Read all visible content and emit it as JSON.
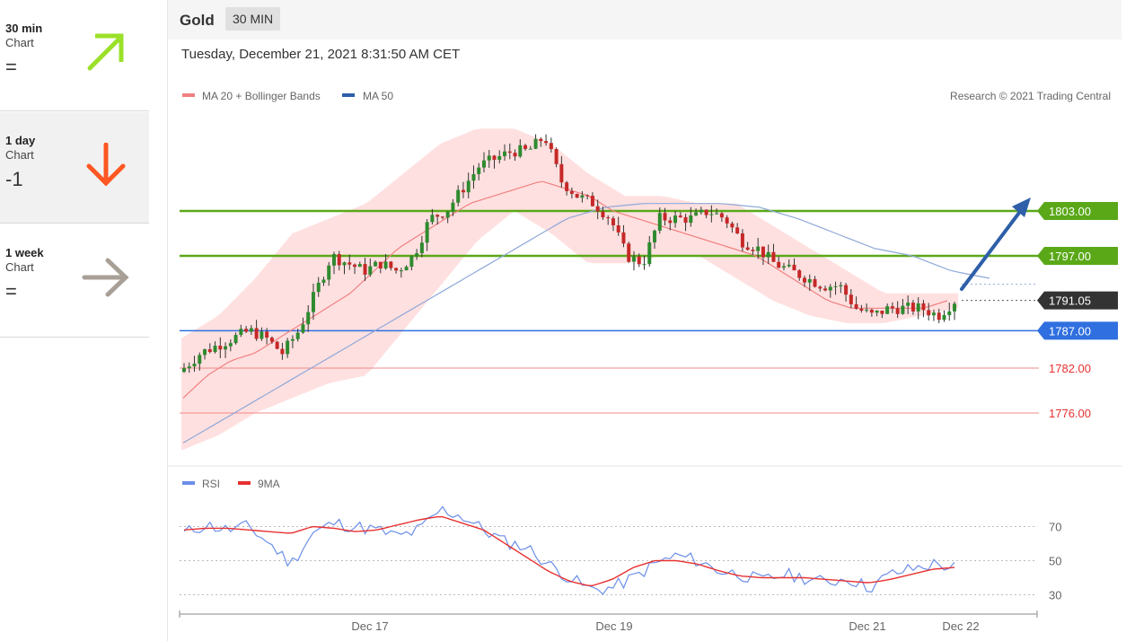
{
  "sidebar": {
    "items": [
      {
        "period": "30 min",
        "sub": "Chart",
        "value": "=",
        "arrow": "up-right-arrow-icon",
        "color": "#9be02a"
      },
      {
        "period": "1 day",
        "sub": "Chart",
        "value": "-1",
        "arrow": "down-arrow-icon",
        "color": "#ff5722"
      },
      {
        "period": "1 week",
        "sub": "Chart",
        "value": "=",
        "arrow": "right-arrow-icon",
        "color": "#a89f97"
      }
    ]
  },
  "header": {
    "instrument": "Gold",
    "timeframe": "30 MIN"
  },
  "datetime": "Tuesday, December 21, 2021 8:31:50 AM CET",
  "copyright": "Research © 2021 Trading Central",
  "legend": {
    "ma20": "MA 20 + Bollinger Bands",
    "ma50": "MA 50",
    "rsi": "RSI",
    "ma9": "9MA"
  },
  "colors": {
    "bollinger": "#ffd6d6",
    "ma20": "#f08080",
    "ma50": "#8fa8d8",
    "green_level": "#5aa818",
    "blue_level": "#2f6fe0",
    "red_level": "#f08888",
    "up_candle": "#2e8b2e",
    "down_candle": "#c62828",
    "rsi": "#6b8ee8",
    "rsi_ma": "#e83030"
  },
  "chart_data": [
    {
      "type": "candlestick",
      "title": "Gold",
      "timeframe": "30 MIN",
      "ylim": [
        1770,
        1818
      ],
      "x_ticks": [
        "Dec 17",
        "Dec 19",
        "Dec 21",
        "Dec 22"
      ],
      "current_price": "1791.05",
      "levels": [
        {
          "value": 1803,
          "label": "1803.00",
          "kind": "resistance"
        },
        {
          "value": 1797,
          "label": "1797.00",
          "kind": "resistance"
        },
        {
          "value": 1787,
          "label": "1787.00",
          "kind": "pivot"
        },
        {
          "value": 1782,
          "label": "1782.00",
          "kind": "support"
        },
        {
          "value": 1776,
          "label": "1776.00",
          "kind": "support"
        }
      ],
      "series_anchors": {
        "close": [
          1782,
          1784,
          1785,
          1786,
          1787,
          1786,
          1784,
          1787,
          1792,
          1797,
          1796,
          1795,
          1796,
          1795,
          1797,
          1802,
          1803,
          1806,
          1809,
          1810,
          1811,
          1811,
          1813,
          1807,
          1805,
          1804,
          1802,
          1797,
          1796,
          1802,
          1802,
          1802,
          1803,
          1802,
          1799,
          1798,
          1796,
          1795,
          1794,
          1793,
          1793,
          1790,
          1789,
          1790,
          1790,
          1790,
          1789,
          1791
        ],
        "ma20": [
          1778,
          1781,
          1783,
          1784,
          1786,
          1788,
          1790,
          1792,
          1795,
          1798,
          1800,
          1802,
          1804,
          1805,
          1806,
          1807,
          1806,
          1805,
          1803,
          1802,
          1801,
          1800,
          1799,
          1798,
          1797,
          1795,
          1793,
          1791,
          1790,
          1790,
          1790,
          1790,
          1791
        ],
        "ma50": [
          1772,
          1775,
          1778,
          1781,
          1784,
          1787,
          1790,
          1793,
          1796,
          1799,
          1802,
          1803.5,
          1804,
          1804,
          1804,
          1803.5,
          1802,
          1800,
          1798,
          1797,
          1795,
          1794
        ],
        "bollinger_upper": [
          1786,
          1789,
          1794,
          1800,
          1802,
          1804,
          1808,
          1812,
          1814,
          1814,
          1812,
          1808,
          1805,
          1805,
          1804,
          1804,
          1801,
          1798,
          1795,
          1792,
          1792,
          1792
        ],
        "bollinger_lower": [
          1771,
          1773,
          1776,
          1778,
          1780,
          1781,
          1787,
          1793,
          1799,
          1803,
          1800,
          1796,
          1796,
          1797,
          1797,
          1794,
          1791,
          1789,
          1788,
          1788,
          1789,
          1790
        ]
      }
    },
    {
      "type": "line",
      "title": "RSI",
      "ylim": [
        25,
        85
      ],
      "y_ticks": [
        30,
        50,
        70
      ],
      "series": [
        {
          "name": "RSI",
          "values": [
            66,
            71,
            68,
            70,
            60,
            48,
            66,
            72,
            70,
            68,
            64,
            68,
            80,
            76,
            68,
            61,
            58,
            48,
            40,
            33,
            34,
            40,
            48,
            53,
            50,
            44,
            42,
            38,
            42,
            40,
            37,
            40,
            34,
            42,
            45,
            48,
            46
          ]
        },
        {
          "name": "9MA",
          "values": [
            68,
            69,
            69,
            68,
            67,
            66,
            70,
            69,
            67,
            68,
            71,
            74,
            76,
            72,
            68,
            60,
            52,
            44,
            38,
            35,
            39,
            46,
            50,
            50,
            48,
            44,
            41,
            40,
            40,
            40,
            39,
            38,
            37,
            39,
            42,
            45,
            46
          ]
        }
      ]
    }
  ]
}
